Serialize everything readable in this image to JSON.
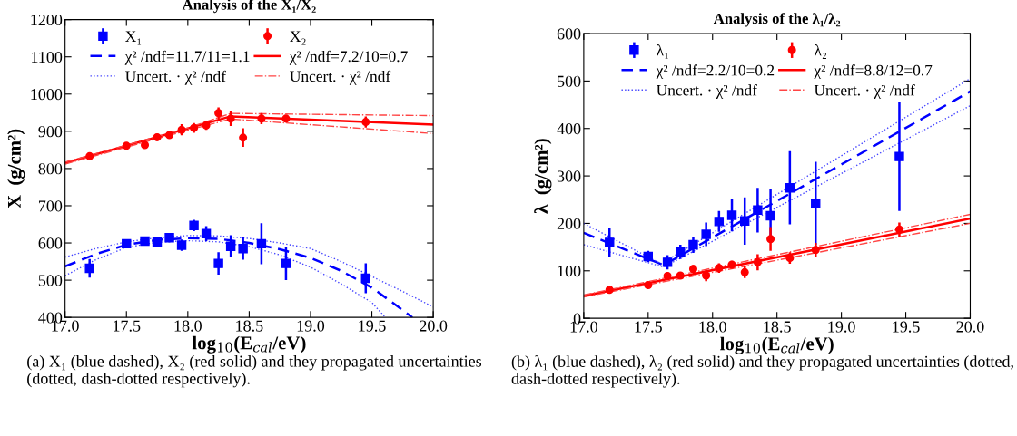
{
  "chart_data": [
    {
      "type": "scatter",
      "title": "Analysis of the X₁/X₂",
      "xlabel": "log$_{10}$(E$_{cal}$/eV)",
      "ylabel": "X  (g/cm²)",
      "xlim": [
        17.0,
        20.0
      ],
      "xticks": [
        {
          "value": 17.0,
          "label": "17.0"
        },
        {
          "value": 17.5,
          "label": "17.5"
        },
        {
          "value": 18.0,
          "label": "18.0"
        },
        {
          "value": 18.5,
          "label": "18.5"
        },
        {
          "value": 19.0,
          "label": "19.0"
        },
        {
          "value": 19.5,
          "label": "19.5"
        },
        {
          "value": 20.0,
          "label": "20.0"
        }
      ],
      "ylim": [
        400,
        1200
      ],
      "yticks": [
        400,
        500,
        600,
        700,
        800,
        900,
        1000,
        1100,
        1200
      ],
      "grid": false,
      "legend": "top",
      "x": [
        17.2,
        17.5,
        17.65,
        17.75,
        17.85,
        17.95,
        18.05,
        18.15,
        18.25,
        18.35,
        18.45,
        18.6,
        18.8,
        19.45
      ],
      "series": [
        {
          "name": "X₁",
          "marker": "square",
          "color": "#0000ff",
          "values": [
            532,
            598,
            605,
            603,
            614,
            594,
            647,
            625,
            545,
            591,
            585,
            598,
            545,
            505
          ],
          "errors": [
            25,
            10,
            12,
            12,
            12,
            15,
            15,
            20,
            30,
            30,
            30,
            55,
            45,
            40
          ]
        },
        {
          "name": "χ² /ndf=11.7/11=1.1",
          "type": "line",
          "line_style": "dashed",
          "color": "#0000ff",
          "x": [
            17.0,
            17.25,
            17.5,
            17.75,
            18.0,
            18.25,
            18.5,
            18.75,
            19.0,
            19.25,
            19.5,
            19.75,
            19.83
          ],
          "values": [
            537,
            570,
            595,
            608,
            613,
            611,
            600,
            583,
            560,
            525,
            480,
            420,
            400
          ]
        },
        {
          "name": "Uncert. · χ² /ndf",
          "type": "line",
          "line_style": "dotted",
          "color": "#4444ff",
          "x": [
            17.0,
            17.25,
            17.5,
            17.75,
            18.0,
            18.25,
            18.5,
            18.75,
            19.0,
            19.25,
            19.5,
            19.75,
            20.0
          ],
          "values": [
            562,
            585,
            603,
            614,
            620,
            619,
            612,
            600,
            585,
            550,
            510,
            470,
            428
          ]
        },
        {
          "type": "line",
          "line_style": "dotted",
          "color": "#4444ff",
          "x": [
            17.0,
            17.25,
            17.5,
            17.75,
            18.0,
            18.25,
            18.5,
            18.75,
            19.0,
            19.25,
            19.5,
            19.61
          ],
          "values": [
            512,
            555,
            588,
            602,
            606,
            603,
            590,
            568,
            535,
            490,
            440,
            400
          ]
        },
        {
          "name": "X₂",
          "marker": "circle",
          "color": "#ff0000",
          "values": [
            833,
            861,
            863,
            884,
            890,
            904,
            909,
            916,
            949,
            934,
            883,
            934,
            934,
            925
          ],
          "errors": [
            4,
            5,
            8,
            7,
            10,
            15,
            13,
            12,
            15,
            20,
            25,
            15,
            5,
            15
          ]
        },
        {
          "name": "χ² /ndf=7.2/10=0.7",
          "type": "line",
          "line_style": "solid",
          "color": "#ff0000",
          "x": [
            17.0,
            18.35,
            20.0
          ],
          "values": [
            815,
            940,
            918
          ]
        },
        {
          "name": "Uncert. · χ² /ndf",
          "type": "line",
          "line_style": "dashdot",
          "color": "#ff4444",
          "x": [
            17.0,
            18.0,
            18.35,
            20.0
          ],
          "values": [
            817,
            909,
            948,
            942
          ]
        },
        {
          "type": "line",
          "line_style": "dashdot",
          "color": "#ff4444",
          "x": [
            17.0,
            18.0,
            18.35,
            20.0
          ],
          "values": [
            812,
            903,
            933,
            894
          ]
        }
      ],
      "annotations": [
        "(a) X₁ (blue dashed), X₂ (red solid) and they propagated uncertainties (dotted, dash-dotted respectively)."
      ]
    },
    {
      "type": "scatter",
      "title": "Analysis of the λ₁/λ₂",
      "xlabel": "log$_{10}$(E$_{cal}$/eV)",
      "ylabel": "λ  (g/cm²)",
      "xlim": [
        17.0,
        20.0
      ],
      "xticks": [
        {
          "value": 17.0,
          "label": "17.0"
        },
        {
          "value": 17.5,
          "label": "17.5"
        },
        {
          "value": 18.0,
          "label": "18.0"
        },
        {
          "value": 18.5,
          "label": "18.5"
        },
        {
          "value": 19.0,
          "label": "19.0"
        },
        {
          "value": 19.5,
          "label": "19.5"
        },
        {
          "value": 20.0,
          "label": "20.0"
        }
      ],
      "ylim": [
        0,
        600
      ],
      "yticks": [
        0,
        100,
        200,
        300,
        400,
        500,
        600
      ],
      "grid": false,
      "legend": "top",
      "x": [
        17.2,
        17.5,
        17.65,
        17.75,
        17.85,
        17.95,
        18.05,
        18.15,
        18.25,
        18.35,
        18.45,
        18.6,
        18.8,
        19.45
      ],
      "series": [
        {
          "name": "λ₁",
          "marker": "square",
          "color": "#0000ff",
          "values": [
            160,
            130,
            118,
            140,
            155,
            177,
            204,
            217,
            205,
            228,
            216,
            275,
            242,
            341
          ],
          "errors": [
            30,
            12,
            15,
            15,
            17,
            25,
            22,
            34,
            50,
            47,
            57,
            77,
            88,
            115
          ]
        },
        {
          "name": "χ² /ndf=2.2/10=0.2",
          "type": "line",
          "line_style": "dashed",
          "color": "#0000ff",
          "x": [
            17.0,
            17.62,
            20.0
          ],
          "values": [
            180,
            112,
            478
          ]
        },
        {
          "name": "Uncert. · χ² /ndf",
          "type": "line",
          "line_style": "dotted",
          "color": "#4444ff",
          "x": [
            17.0,
            17.6,
            20.0
          ],
          "values": [
            200,
            115,
            505
          ]
        },
        {
          "type": "line",
          "line_style": "dotted",
          "color": "#4444ff",
          "x": [
            17.0,
            17.62,
            20.0
          ],
          "values": [
            155,
            108,
            448
          ]
        },
        {
          "name": "λ₂",
          "marker": "circle",
          "color": "#ff0000",
          "values": [
            60,
            70,
            89,
            90,
            104,
            90,
            106,
            113,
            97,
            118,
            167,
            127,
            144,
            187
          ],
          "errors": [
            4,
            5,
            8,
            7,
            8,
            12,
            10,
            8,
            12,
            17,
            25,
            12,
            15,
            15
          ]
        },
        {
          "name": "χ² /ndf=8.8/12=0.7",
          "type": "line",
          "line_style": "solid",
          "color": "#ff0000",
          "x": [
            17.0,
            20.0
          ],
          "values": [
            47,
            210
          ]
        },
        {
          "name": "Uncert. · χ² /ndf",
          "type": "line",
          "line_style": "dashdot",
          "color": "#ff4444",
          "x": [
            17.0,
            20.0
          ],
          "values": [
            49,
            219
          ]
        },
        {
          "type": "line",
          "line_style": "dashdot",
          "color": "#ff4444",
          "x": [
            17.0,
            20.0
          ],
          "values": [
            45,
            200
          ]
        }
      ],
      "annotations": [
        "(b) λ₁ (blue dashed), λ₂ (red solid) and they propagated uncertainties (dotted, dash-dotted respectively)."
      ]
    }
  ]
}
